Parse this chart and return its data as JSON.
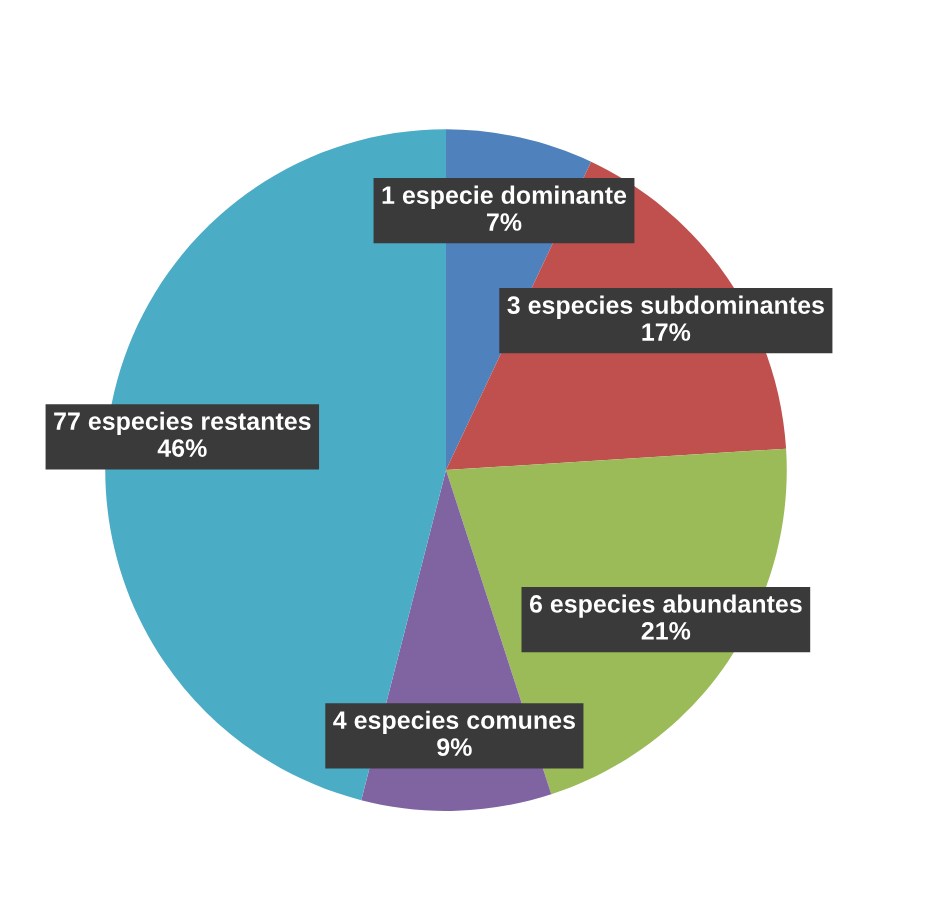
{
  "chart_data": {
    "type": "pie",
    "categories": [
      "1 especie dominante",
      "3 especies subdominantes",
      "6 especies abundantes",
      "4 especies comunes",
      "77 especies restantes"
    ],
    "values": [
      7,
      17,
      21,
      9,
      46
    ],
    "value_labels": [
      "7%",
      "17%",
      "21%",
      "9%",
      "46%"
    ],
    "colors": [
      "#4f81bd",
      "#c0504d",
      "#9bbb59",
      "#8064a2",
      "#4bacc6"
    ]
  }
}
